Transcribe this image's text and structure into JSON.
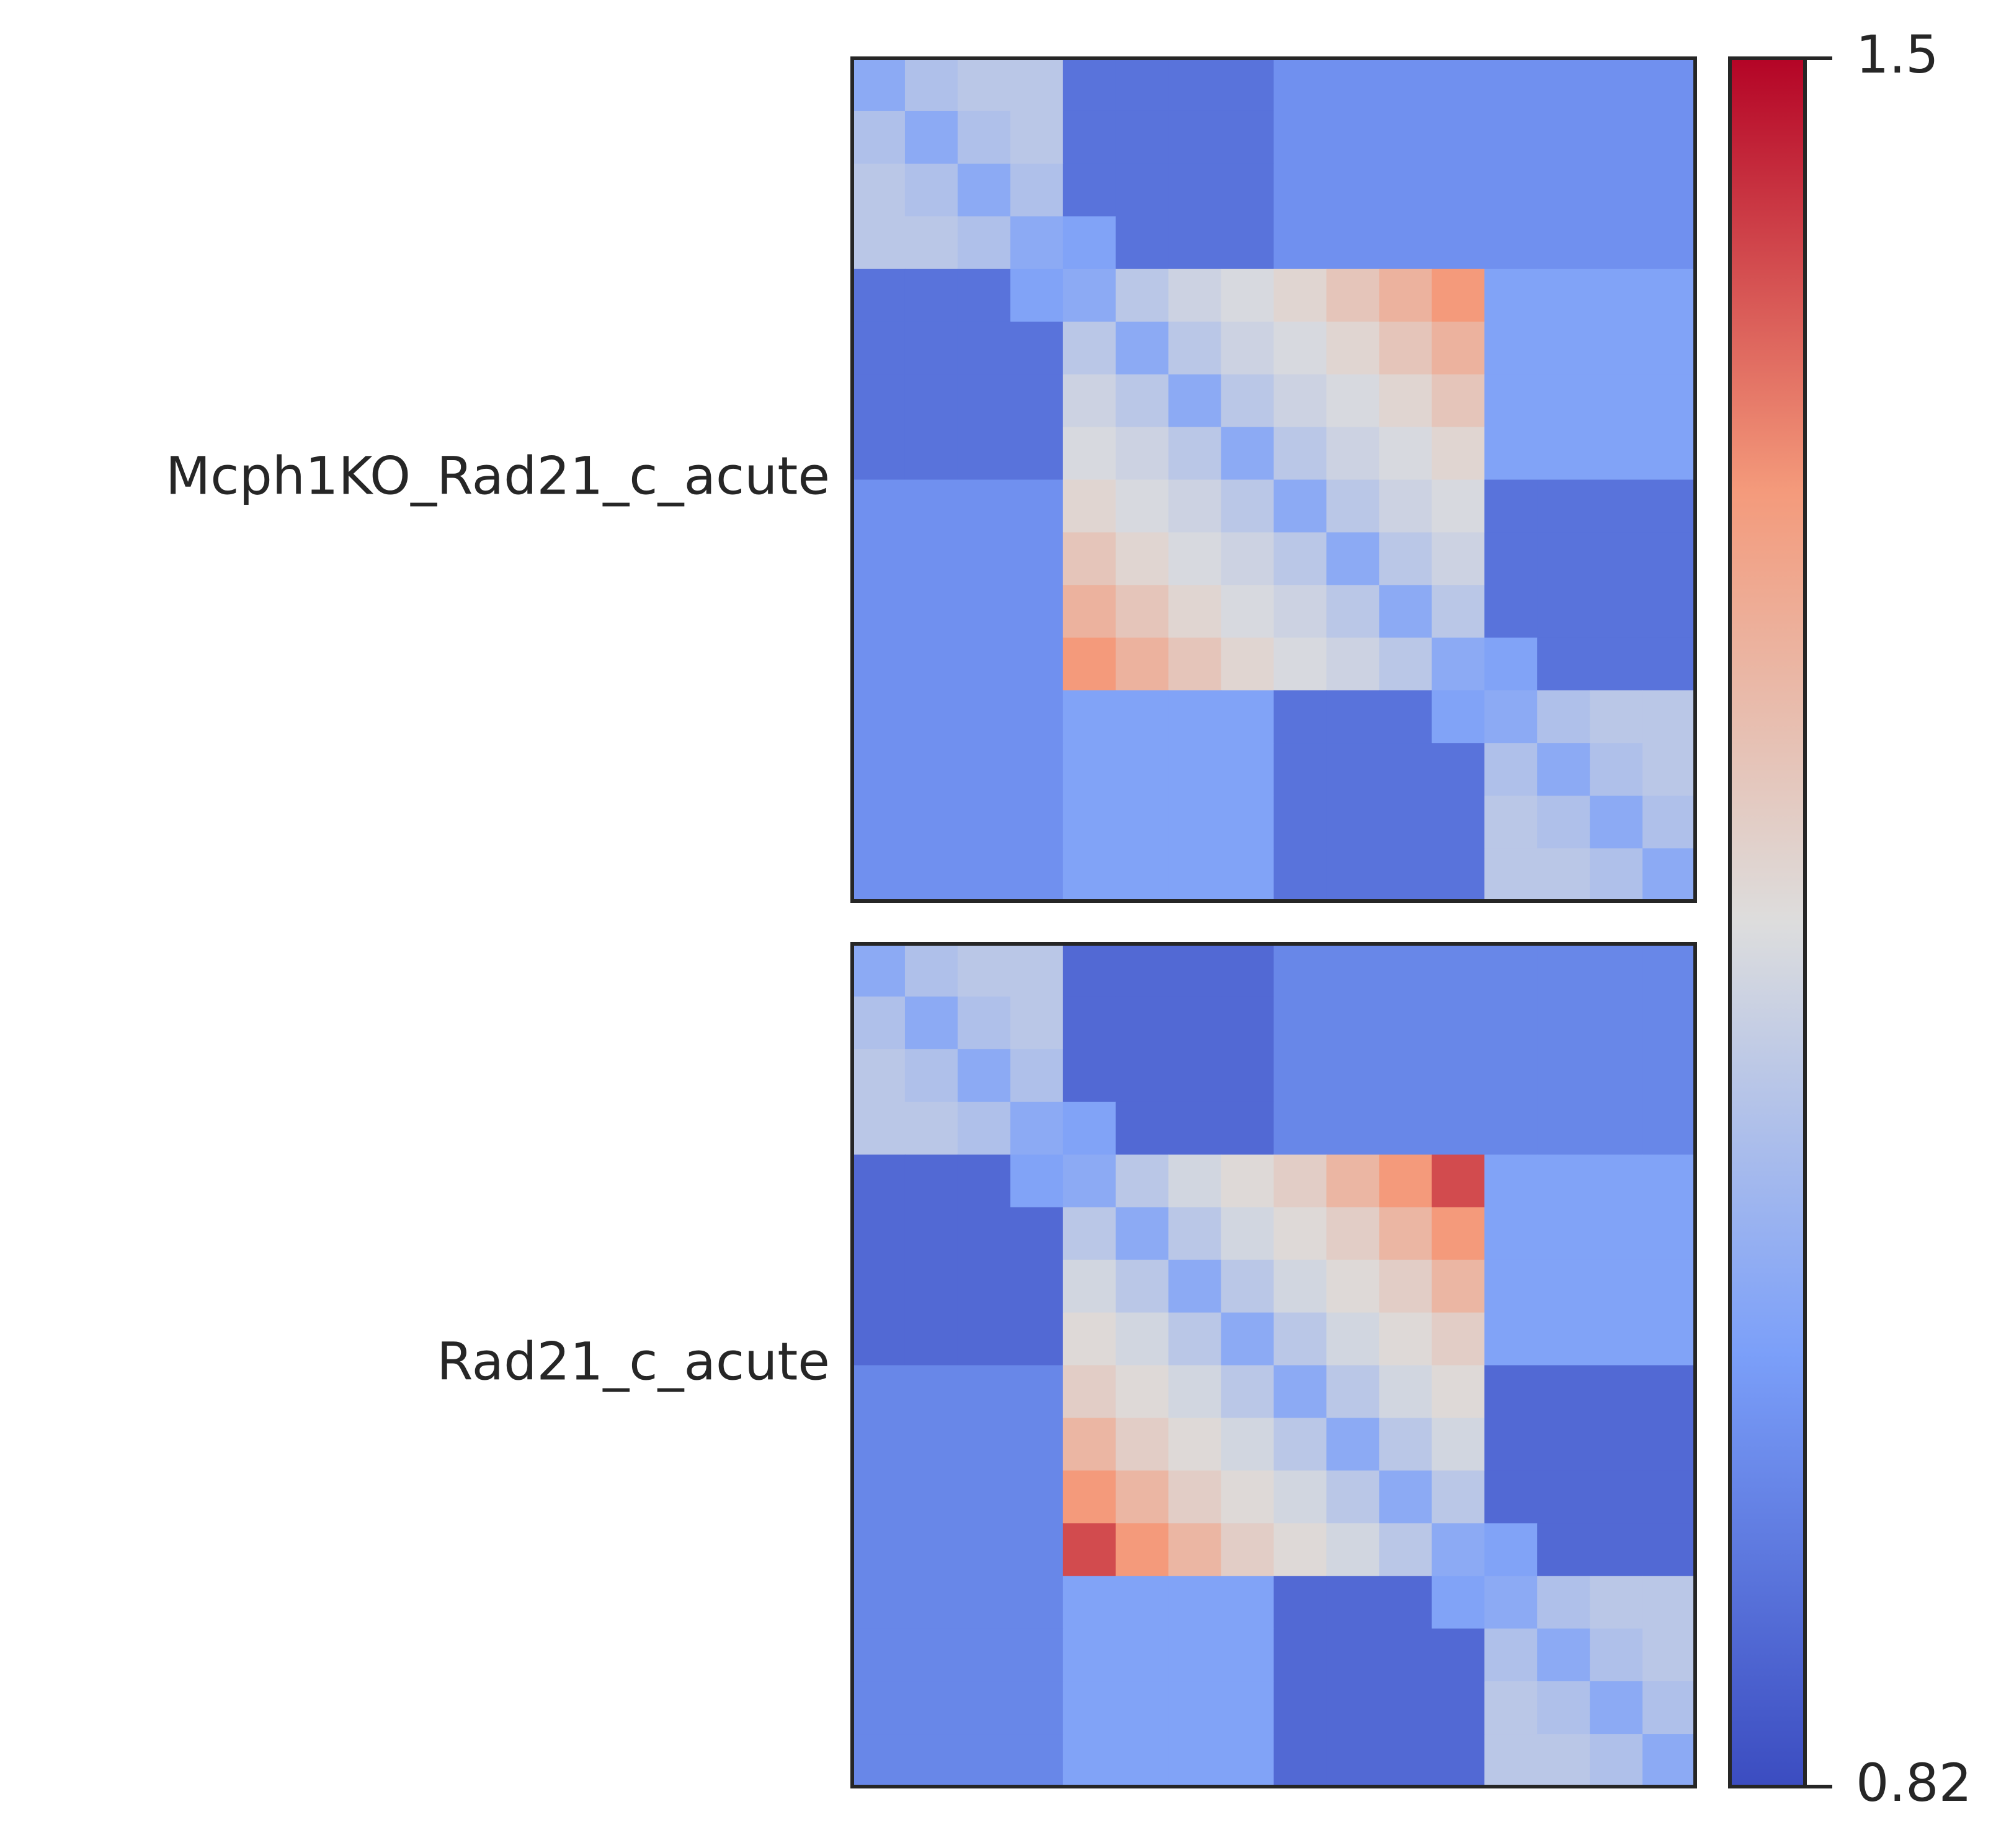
{
  "chart_data": {
    "type": "heatmap",
    "colormap": "coolwarm",
    "vlim": [
      0.82,
      1.5
    ],
    "ticks": [
      1.5,
      0.82
    ],
    "panels": [
      {
        "label": "Mcph1KO_Rad21_c_acute",
        "values": [
          [
            1.02,
            1.08,
            1.1,
            1.1,
            0.9,
            0.9,
            0.9,
            0.9,
            0.96,
            0.96,
            0.96,
            0.96,
            0.96,
            0.96,
            0.96,
            0.96
          ],
          [
            1.08,
            1.02,
            1.08,
            1.1,
            0.9,
            0.9,
            0.9,
            0.9,
            0.96,
            0.96,
            0.96,
            0.96,
            0.96,
            0.96,
            0.96,
            0.96
          ],
          [
            1.1,
            1.08,
            1.02,
            1.08,
            0.9,
            0.9,
            0.9,
            0.9,
            0.96,
            0.96,
            0.96,
            0.96,
            0.96,
            0.96,
            0.96,
            0.96
          ],
          [
            1.1,
            1.1,
            1.08,
            1.02,
            1.0,
            0.9,
            0.9,
            0.9,
            0.96,
            0.96,
            0.96,
            0.96,
            0.96,
            0.96,
            0.96,
            0.96
          ],
          [
            0.9,
            0.9,
            0.9,
            1.0,
            1.02,
            1.1,
            1.13,
            1.15,
            1.18,
            1.22,
            1.27,
            1.33,
            1.0,
            1.0,
            1.0,
            1.0
          ],
          [
            0.9,
            0.9,
            0.9,
            0.9,
            1.1,
            1.02,
            1.1,
            1.13,
            1.15,
            1.18,
            1.22,
            1.27,
            1.0,
            1.0,
            1.0,
            1.0
          ],
          [
            0.9,
            0.9,
            0.9,
            0.9,
            1.13,
            1.1,
            1.02,
            1.1,
            1.13,
            1.15,
            1.18,
            1.22,
            1.0,
            1.0,
            1.0,
            1.0
          ],
          [
            0.9,
            0.9,
            0.9,
            0.9,
            1.15,
            1.13,
            1.1,
            1.02,
            1.1,
            1.13,
            1.15,
            1.18,
            1.0,
            1.0,
            1.0,
            1.0
          ],
          [
            0.96,
            0.96,
            0.96,
            0.96,
            1.18,
            1.15,
            1.13,
            1.1,
            1.02,
            1.1,
            1.13,
            1.15,
            0.9,
            0.9,
            0.9,
            0.9
          ],
          [
            0.96,
            0.96,
            0.96,
            0.96,
            1.22,
            1.18,
            1.15,
            1.13,
            1.1,
            1.02,
            1.1,
            1.13,
            0.9,
            0.9,
            0.9,
            0.9
          ],
          [
            0.96,
            0.96,
            0.96,
            0.96,
            1.27,
            1.22,
            1.18,
            1.15,
            1.13,
            1.1,
            1.02,
            1.1,
            0.9,
            0.9,
            0.9,
            0.9
          ],
          [
            0.96,
            0.96,
            0.96,
            0.96,
            1.33,
            1.27,
            1.22,
            1.18,
            1.15,
            1.13,
            1.1,
            1.02,
            1.0,
            0.9,
            0.9,
            0.9
          ],
          [
            0.96,
            0.96,
            0.96,
            0.96,
            1.0,
            1.0,
            1.0,
            1.0,
            0.9,
            0.9,
            0.9,
            1.0,
            1.02,
            1.08,
            1.1,
            1.1
          ],
          [
            0.96,
            0.96,
            0.96,
            0.96,
            1.0,
            1.0,
            1.0,
            1.0,
            0.9,
            0.9,
            0.9,
            0.9,
            1.08,
            1.02,
            1.08,
            1.1
          ],
          [
            0.96,
            0.96,
            0.96,
            0.96,
            1.0,
            1.0,
            1.0,
            1.0,
            0.9,
            0.9,
            0.9,
            0.9,
            1.1,
            1.08,
            1.02,
            1.08
          ],
          [
            0.96,
            0.96,
            0.96,
            0.96,
            1.0,
            1.0,
            1.0,
            1.0,
            0.9,
            0.9,
            0.9,
            0.9,
            1.1,
            1.1,
            1.08,
            1.02
          ]
        ]
      },
      {
        "label": "Rad21_c_acute",
        "values": [
          [
            1.02,
            1.08,
            1.1,
            1.1,
            0.88,
            0.88,
            0.88,
            0.88,
            0.94,
            0.94,
            0.94,
            0.94,
            0.94,
            0.94,
            0.94,
            0.94
          ],
          [
            1.08,
            1.02,
            1.08,
            1.1,
            0.88,
            0.88,
            0.88,
            0.88,
            0.94,
            0.94,
            0.94,
            0.94,
            0.94,
            0.94,
            0.94,
            0.94
          ],
          [
            1.1,
            1.08,
            1.02,
            1.08,
            0.88,
            0.88,
            0.88,
            0.88,
            0.94,
            0.94,
            0.94,
            0.94,
            0.94,
            0.94,
            0.94,
            0.94
          ],
          [
            1.1,
            1.1,
            1.08,
            1.02,
            1.0,
            0.88,
            0.88,
            0.88,
            0.94,
            0.94,
            0.94,
            0.94,
            0.94,
            0.94,
            0.94,
            0.94
          ],
          [
            0.88,
            0.88,
            0.88,
            1.0,
            1.02,
            1.1,
            1.14,
            1.17,
            1.2,
            1.26,
            1.33,
            1.42,
            1.0,
            1.0,
            1.0,
            1.0
          ],
          [
            0.88,
            0.88,
            0.88,
            0.88,
            1.1,
            1.02,
            1.1,
            1.14,
            1.17,
            1.2,
            1.26,
            1.33,
            1.0,
            1.0,
            1.0,
            1.0
          ],
          [
            0.88,
            0.88,
            0.88,
            0.88,
            1.14,
            1.1,
            1.02,
            1.1,
            1.14,
            1.17,
            1.2,
            1.26,
            1.0,
            1.0,
            1.0,
            1.0
          ],
          [
            0.88,
            0.88,
            0.88,
            0.88,
            1.17,
            1.14,
            1.1,
            1.02,
            1.1,
            1.14,
            1.17,
            1.2,
            1.0,
            1.0,
            1.0,
            1.0
          ],
          [
            0.94,
            0.94,
            0.94,
            0.94,
            1.2,
            1.17,
            1.14,
            1.1,
            1.02,
            1.1,
            1.14,
            1.17,
            0.88,
            0.88,
            0.88,
            0.88
          ],
          [
            0.94,
            0.94,
            0.94,
            0.94,
            1.26,
            1.2,
            1.17,
            1.14,
            1.1,
            1.02,
            1.1,
            1.14,
            0.88,
            0.88,
            0.88,
            0.88
          ],
          [
            0.94,
            0.94,
            0.94,
            0.94,
            1.33,
            1.26,
            1.2,
            1.17,
            1.14,
            1.1,
            1.02,
            1.1,
            0.88,
            0.88,
            0.88,
            0.88
          ],
          [
            0.94,
            0.94,
            0.94,
            0.94,
            1.42,
            1.33,
            1.26,
            1.2,
            1.17,
            1.14,
            1.1,
            1.02,
            1.0,
            0.88,
            0.88,
            0.88
          ],
          [
            0.94,
            0.94,
            0.94,
            0.94,
            1.0,
            1.0,
            1.0,
            1.0,
            0.88,
            0.88,
            0.88,
            1.0,
            1.02,
            1.08,
            1.1,
            1.1
          ],
          [
            0.94,
            0.94,
            0.94,
            0.94,
            1.0,
            1.0,
            1.0,
            1.0,
            0.88,
            0.88,
            0.88,
            0.88,
            1.08,
            1.02,
            1.08,
            1.1
          ],
          [
            0.94,
            0.94,
            0.94,
            0.94,
            1.0,
            1.0,
            1.0,
            1.0,
            0.88,
            0.88,
            0.88,
            0.88,
            1.1,
            1.08,
            1.02,
            1.08
          ],
          [
            0.94,
            0.94,
            0.94,
            0.94,
            1.0,
            1.0,
            1.0,
            1.0,
            0.88,
            0.88,
            0.88,
            0.88,
            1.1,
            1.1,
            1.08,
            1.02
          ]
        ]
      }
    ]
  }
}
